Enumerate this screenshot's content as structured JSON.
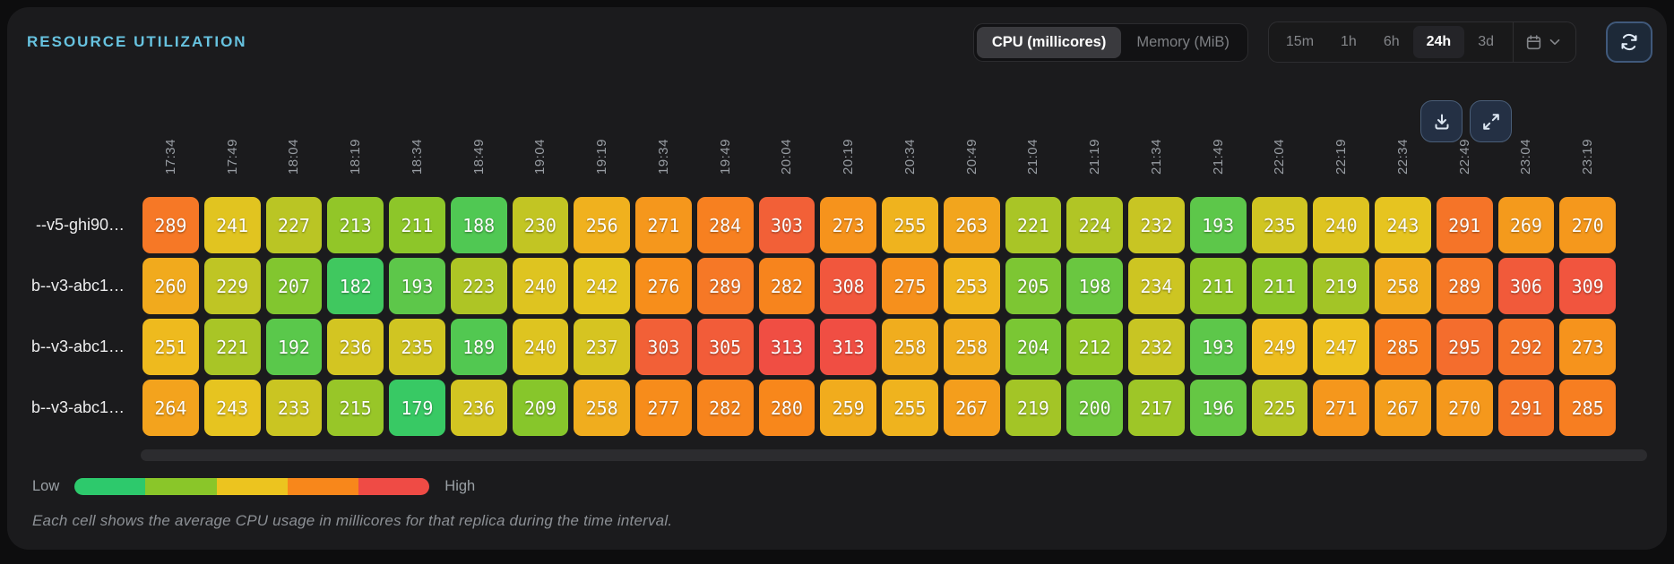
{
  "panel": {
    "title": "RESOURCE UTILIZATION",
    "accent_color": "#67c3e0"
  },
  "mode_toggle": {
    "options": [
      {
        "label": "CPU (millicores)",
        "active": true
      },
      {
        "label": "Memory (MiB)",
        "active": false
      }
    ]
  },
  "time_range": {
    "options": [
      {
        "label": "15m",
        "active": false
      },
      {
        "label": "1h",
        "active": false
      },
      {
        "label": "6h",
        "active": false
      },
      {
        "label": "24h",
        "active": true
      },
      {
        "label": "3d",
        "active": false
      }
    ]
  },
  "icons": {
    "calendar": "calendar-icon",
    "chevron": "chevron-down-icon",
    "refresh": "refresh-icon",
    "download": "download-icon",
    "expand": "expand-icon"
  },
  "chart_data": {
    "type": "heatmap",
    "title": "Resource Utilization",
    "unit": "millicores",
    "columns": [
      "17:34",
      "17:49",
      "18:04",
      "18:19",
      "18:34",
      "18:49",
      "19:04",
      "19:19",
      "19:34",
      "19:49",
      "20:04",
      "20:19",
      "20:34",
      "20:49",
      "21:04",
      "21:19",
      "21:34",
      "21:49",
      "22:04",
      "22:19",
      "22:34",
      "22:49",
      "23:04",
      "23:19"
    ],
    "rows": [
      {
        "label": "--v5-ghi90…",
        "values": [
          289,
          241,
          227,
          213,
          211,
          188,
          230,
          256,
          271,
          284,
          303,
          273,
          255,
          263,
          221,
          224,
          232,
          193,
          235,
          240,
          243,
          291,
          269,
          270
        ]
      },
      {
        "label": "b--v3-abc1…",
        "values": [
          260,
          229,
          207,
          182,
          193,
          223,
          240,
          242,
          276,
          289,
          282,
          308,
          275,
          253,
          205,
          198,
          234,
          211,
          211,
          219,
          258,
          289,
          306,
          309
        ]
      },
      {
        "label": "b--v3-abc1…",
        "values": [
          251,
          221,
          192,
          236,
          235,
          189,
          240,
          237,
          303,
          305,
          313,
          313,
          258,
          258,
          204,
          212,
          232,
          193,
          249,
          247,
          285,
          295,
          292,
          273
        ]
      },
      {
        "label": "b--v3-abc1…",
        "values": [
          264,
          243,
          233,
          215,
          179,
          236,
          209,
          258,
          277,
          282,
          280,
          259,
          255,
          267,
          219,
          200,
          217,
          196,
          225,
          271,
          267,
          270,
          291,
          285
        ]
      }
    ],
    "color_scale": {
      "domain": [
        175,
        315
      ],
      "stops": [
        "#2dc96c",
        "#8ac629",
        "#ecc41f",
        "#f8871b",
        "#ef4b45"
      ]
    },
    "legend_position": "bottom-left"
  },
  "legend": {
    "low_label": "Low",
    "high_label": "High"
  },
  "caption": "Each cell shows the average CPU usage in millicores for that replica during the time interval."
}
